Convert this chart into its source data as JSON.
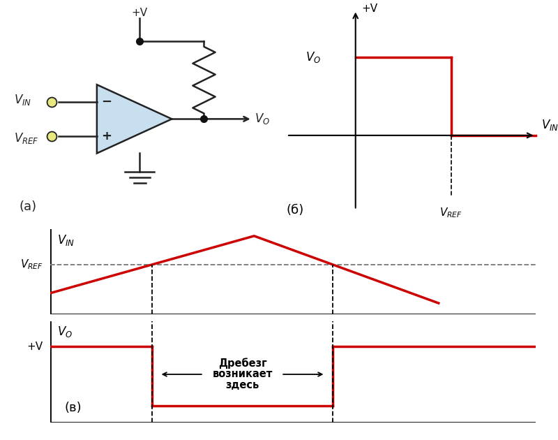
{
  "bg_color": "#ffffff",
  "line_color": "#cc0000",
  "line_width": 2.5,
  "axis_color": "#000000",
  "dashed_color": "#777777",
  "circuit_fill": "#c8dff0",
  "circuit_stroke": "#222222",
  "dot_color": "#111111",
  "terminal_color": "#e8e880",
  "label_a": "(а)",
  "label_b": "(б)",
  "label_c": "(в)",
  "annotation_ru": "Дребезг\nвозникает\nздесь"
}
